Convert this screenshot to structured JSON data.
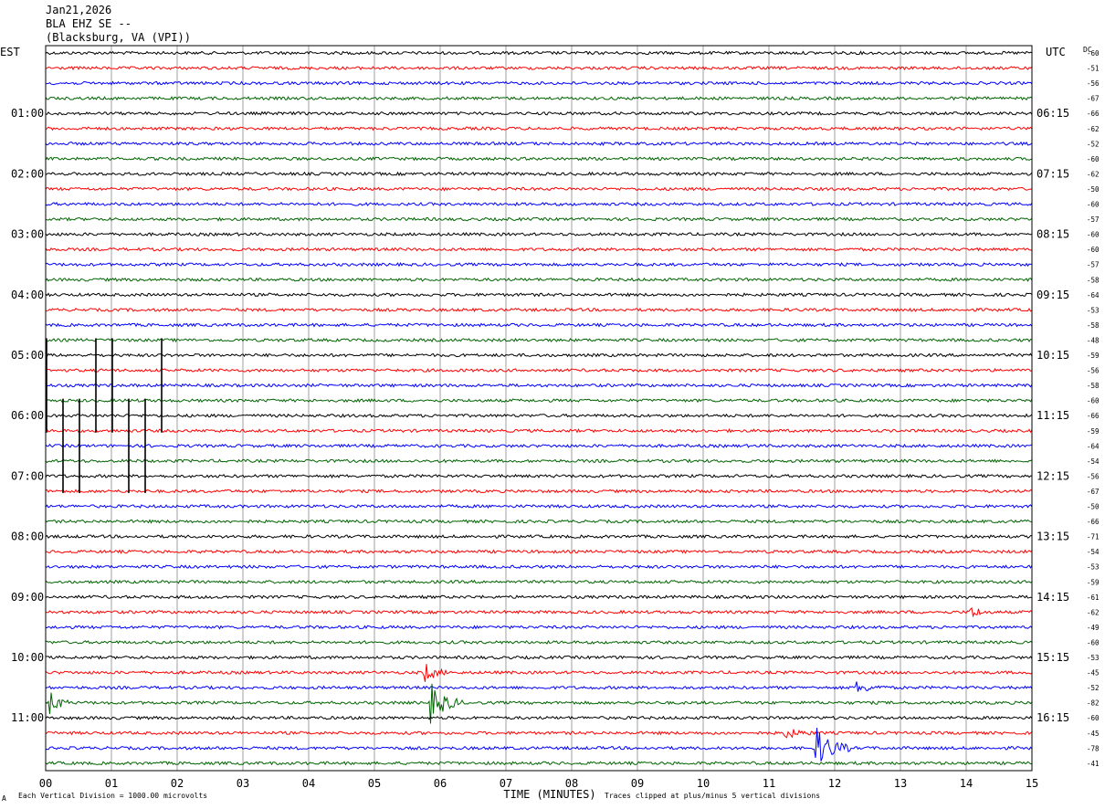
{
  "header": {
    "date": "Jan21,2026",
    "station": "BLA EHZ SE --",
    "location": "(Blacksburg, VA (VPI))"
  },
  "footer": {
    "scale_note": "Each Vertical Division = 1000.00 microvolts",
    "clip_note": "Traces clipped at plus/minus 5 vertical divisions",
    "corner_mark": "A"
  },
  "chart_data": {
    "type": "line",
    "title": "",
    "xlabel": "TIME (MINUTES)",
    "xlim": [
      0,
      15
    ],
    "x_ticks": [
      "00",
      "01",
      "02",
      "03",
      "04",
      "05",
      "06",
      "07",
      "08",
      "09",
      "10",
      "11",
      "12",
      "13",
      "14",
      "15"
    ],
    "left_axis_title": "EST",
    "right_axis_title": "UTC",
    "right_column_title": "DC",
    "left_hour_labels": [
      "01:00",
      "02:00",
      "03:00",
      "04:00",
      "05:00",
      "06:00",
      "07:00",
      "08:00",
      "09:00",
      "10:00",
      "11:00"
    ],
    "right_hour_labels": [
      "06:15",
      "07:15",
      "08:15",
      "09:15",
      "10:15",
      "11:15",
      "12:15",
      "13:15",
      "14:15",
      "15:15",
      "16:15"
    ],
    "trace_colors": [
      "#000000",
      "#ff0000",
      "#0000ff",
      "#006400"
    ],
    "trace_count": 48,
    "grid": "vertical lines at each minute",
    "dc_offsets": [
      -60,
      -51,
      -56,
      -67,
      -66,
      -62,
      -52,
      -60,
      -62,
      -50,
      -60,
      -57,
      -60,
      -60,
      -57,
      -58,
      -64,
      -53,
      -58,
      -48,
      -59,
      -56,
      -58,
      -60,
      -66,
      -59,
      -64,
      -54,
      -56,
      -67,
      -50,
      -66,
      -71,
      -54,
      -53,
      -59,
      -61,
      -62,
      -49,
      -60,
      -53,
      -45,
      -52,
      -82,
      -60,
      -45,
      -78,
      -41
    ],
    "events": [
      {
        "trace": 41,
        "minute": 5.75,
        "amplitude": 0.55,
        "duration": 0.35
      },
      {
        "trace": 43,
        "minute": 0.05,
        "amplitude": 0.7,
        "duration": 0.3
      },
      {
        "trace": 43,
        "minute": 5.85,
        "amplitude": 1.0,
        "duration": 0.5
      },
      {
        "trace": 46,
        "minute": 11.7,
        "amplitude": 1.1,
        "duration": 0.55
      },
      {
        "trace": 45,
        "minute": 11.2,
        "amplitude": 0.3,
        "duration": 0.5
      },
      {
        "trace": 42,
        "minute": 12.3,
        "amplitude": 0.3,
        "duration": 0.5
      },
      {
        "trace": 37,
        "minute": 14.05,
        "amplitude": 0.4,
        "duration": 0.3
      }
    ],
    "spikes": [
      {
        "minute": 0.0,
        "from_trace": 19,
        "to_trace": 25
      },
      {
        "minute": 0.25,
        "from_trace": 23,
        "to_trace": 29
      },
      {
        "minute": 0.5,
        "from_trace": 23,
        "to_trace": 29
      },
      {
        "minute": 0.75,
        "from_trace": 19,
        "to_trace": 25
      },
      {
        "minute": 1.0,
        "from_trace": 19,
        "to_trace": 25
      },
      {
        "minute": 1.25,
        "from_trace": 23,
        "to_trace": 29
      },
      {
        "minute": 1.5,
        "from_trace": 23,
        "to_trace": 29
      },
      {
        "minute": 1.75,
        "from_trace": 19,
        "to_trace": 25
      }
    ]
  }
}
